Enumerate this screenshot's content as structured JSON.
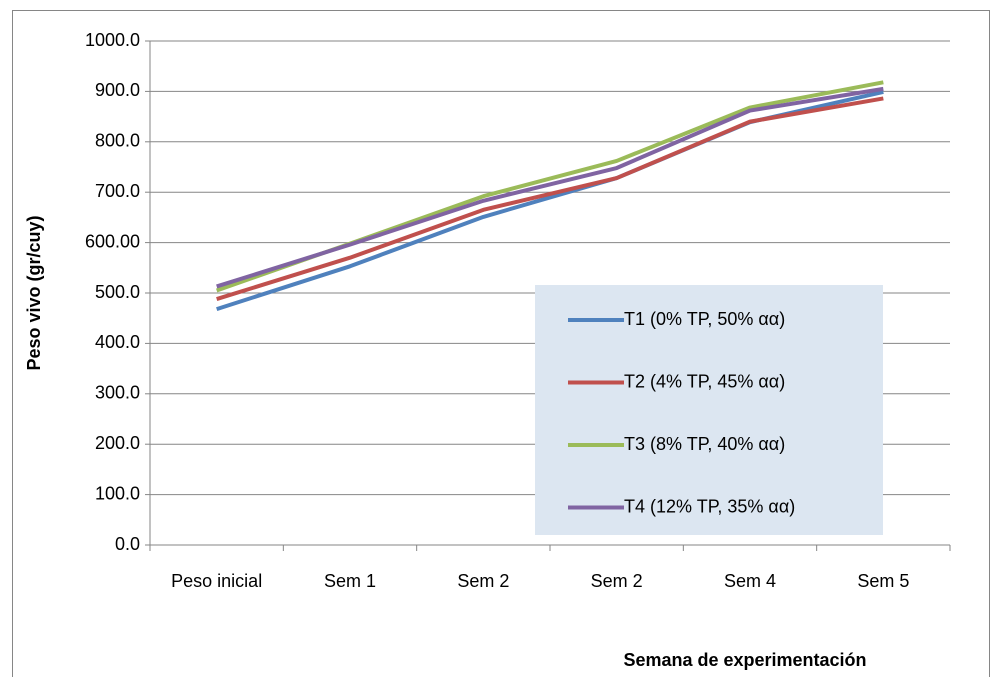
{
  "chart_data": {
    "type": "line",
    "y_label": "Peso vivo (gr/cuy)",
    "x_label": "Semana de experimentación",
    "categories": [
      "Peso inicial",
      "Sem 1",
      "Sem 2",
      "Sem 2",
      "Sem 4",
      "Sem 5"
    ],
    "series": [
      {
        "name": "T1 (0% TP, 50% αα)",
        "color": "#4f81bd",
        "values": [
          468,
          553,
          651,
          728,
          839,
          899
        ]
      },
      {
        "name": "T2 (4% TP, 45% αα)",
        "color": "#c0504d",
        "values": [
          488,
          570,
          665,
          728,
          840,
          886
        ]
      },
      {
        "name": "T3 (8% TP, 40% αα)",
        "color": "#9bbb59",
        "values": [
          505,
          598,
          692,
          762,
          868,
          918
        ]
      },
      {
        "name": "T4 (12% TP, 35% αα)",
        "color": "#8064a2",
        "values": [
          513,
          596,
          683,
          748,
          862,
          905
        ]
      }
    ],
    "ylim": [
      0,
      1000
    ],
    "yticks": [
      {
        "value": 0,
        "label": "0.0"
      },
      {
        "value": 100,
        "label": "100.0"
      },
      {
        "value": 200,
        "label": "200.0"
      },
      {
        "value": 300,
        "label": "300.0"
      },
      {
        "value": 400,
        "label": "400.0"
      },
      {
        "value": 500,
        "label": "500.0"
      },
      {
        "value": 600,
        "label": "600.00"
      },
      {
        "value": 700,
        "label": "700.0"
      },
      {
        "value": 800,
        "label": "800.0"
      },
      {
        "value": 900,
        "label": "900.0"
      },
      {
        "value": 1000,
        "label": "1000.0"
      }
    ],
    "grid": true,
    "legend": "right"
  }
}
